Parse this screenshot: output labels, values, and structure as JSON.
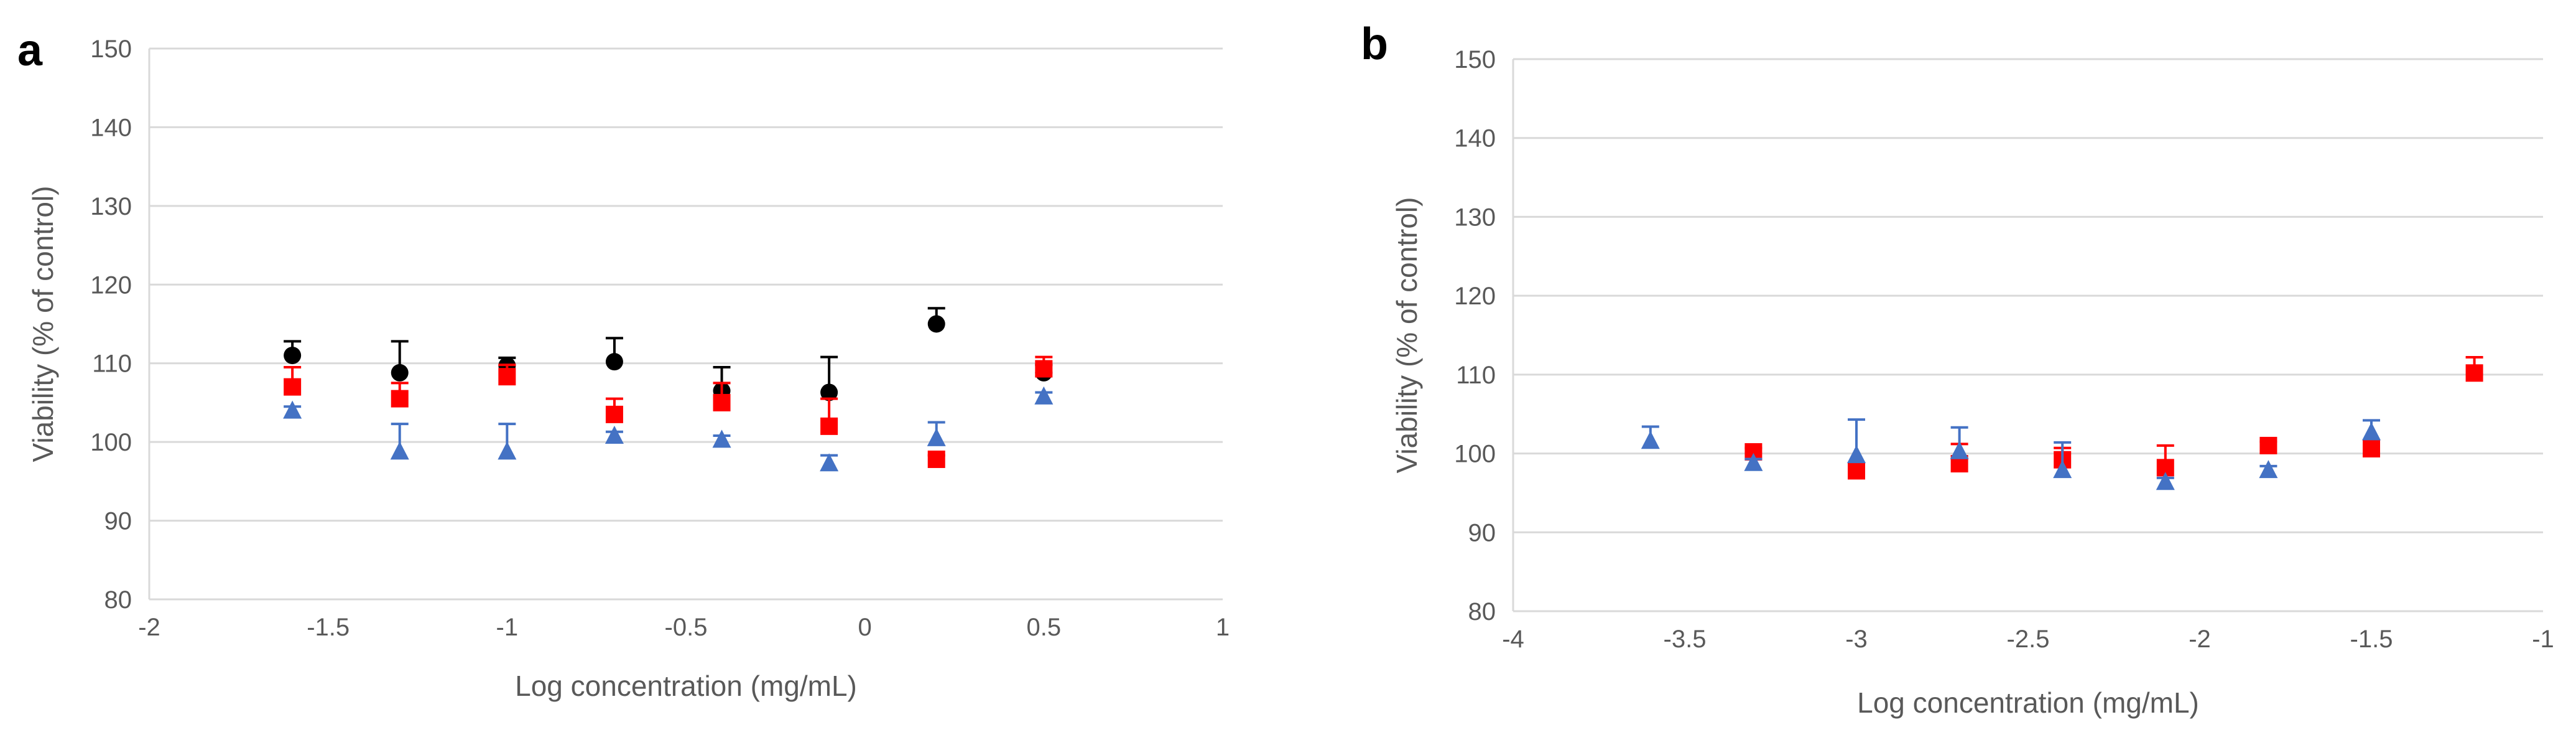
{
  "panels": {
    "a": {
      "label": "a"
    },
    "b": {
      "label": "b"
    }
  },
  "chart_data": [
    {
      "id": "a",
      "type": "scatter",
      "title": "",
      "xlabel": "Log concentration (mg/mL)",
      "ylabel": "Viability (% of control)",
      "xlim": [
        -2,
        1
      ],
      "ylim": [
        80,
        150
      ],
      "xticks": [
        -2,
        -1.5,
        -1,
        -0.5,
        0,
        0.5,
        1
      ],
      "xtick_labels": [
        "-2",
        "-1.5",
        "-1",
        "-0.5",
        "0",
        "0.5",
        "1"
      ],
      "yticks": [
        80,
        90,
        100,
        110,
        120,
        130,
        140,
        150
      ],
      "ytick_labels": [
        "80",
        "90",
        "100",
        "110",
        "120",
        "130",
        "140",
        "150"
      ],
      "grid": true,
      "series": [
        {
          "name": "circle series",
          "marker": "circle",
          "color": "#000000",
          "x": [
            -1.6,
            -1.3,
            -1.0,
            -0.7,
            -0.4,
            -0.1,
            0.2,
            0.5
          ],
          "y": [
            111,
            108.8,
            109.7,
            110.2,
            106.5,
            106.3,
            115,
            108.8
          ],
          "err": [
            1.8,
            4.0,
            1.0,
            3.0,
            3.0,
            4.5,
            2.0,
            1.0
          ]
        },
        {
          "name": "square series",
          "marker": "square",
          "color": "#FF0000",
          "x": [
            -1.6,
            -1.3,
            -1.0,
            -0.7,
            -0.4,
            -0.1,
            0.2,
            0.5
          ],
          "y": [
            107,
            105.5,
            108.3,
            103.5,
            105,
            102,
            97.8,
            109.3
          ],
          "err": [
            2.5,
            2.0,
            1.5,
            2.0,
            2.5,
            3.5,
            0.5,
            1.5
          ]
        },
        {
          "name": "triangle series",
          "marker": "triangle",
          "color": "#4472C4",
          "x": [
            -1.6,
            -1.3,
            -1.0,
            -0.7,
            -0.4,
            -0.1,
            0.2,
            0.5
          ],
          "y": [
            104,
            98.8,
            98.8,
            100.8,
            100.3,
            97.3,
            100.5,
            105.8
          ],
          "err": [
            0.5,
            3.5,
            3.5,
            0.5,
            0.5,
            1.0,
            2.0,
            0.5
          ]
        }
      ]
    },
    {
      "id": "b",
      "type": "scatter",
      "title": "",
      "xlabel": "Log concentration (mg/mL)",
      "ylabel": "Viability (% of control)",
      "xlim": [
        -4,
        -1
      ],
      "ylim": [
        80,
        150
      ],
      "xticks": [
        -4,
        -3.5,
        -3,
        -2.5,
        -2,
        -1.5,
        -1
      ],
      "xtick_labels": [
        "-4",
        "-3.5",
        "-3",
        "-2.5",
        "-2",
        "-1.5",
        "-1"
      ],
      "yticks": [
        80,
        90,
        100,
        110,
        120,
        130,
        140,
        150
      ],
      "ytick_labels": [
        "80",
        "90",
        "100",
        "110",
        "120",
        "130",
        "140",
        "150"
      ],
      "grid": true,
      "series": [
        {
          "name": "square series",
          "marker": "square",
          "color": "#FF0000",
          "x": [
            -3.3,
            -3.0,
            -2.7,
            -2.4,
            -2.1,
            -1.8,
            -1.5,
            -1.2
          ],
          "y": [
            100.2,
            97.8,
            98.7,
            99.2,
            98.2,
            101,
            100.6,
            110.2
          ],
          "err": [
            0.5,
            0.5,
            2.5,
            1.5,
            2.8,
            0.5,
            0.5,
            2.0
          ]
        },
        {
          "name": "triangle series",
          "marker": "triangle",
          "color": "#4472C4",
          "x": [
            -3.6,
            -3.3,
            -3.0,
            -2.7,
            -2.4,
            -2.1,
            -1.8,
            -1.5
          ],
          "y": [
            101.6,
            98.8,
            99.8,
            100.3,
            97.9,
            96.4,
            97.9,
            102.7
          ],
          "err": [
            1.8,
            0.5,
            4.5,
            3.0,
            3.5,
            0.5,
            0.5,
            1.5
          ]
        }
      ]
    }
  ]
}
